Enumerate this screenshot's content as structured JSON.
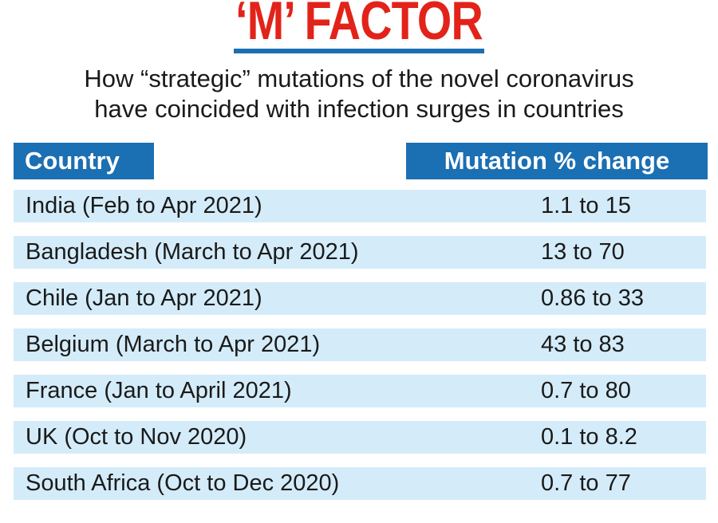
{
  "chart_data": {
    "type": "table",
    "title": "‘M’ FACTOR",
    "subtitle_lines": [
      "How “strategic” mutations of the novel coronavirus",
      "have coincided with infection surges in countries"
    ],
    "columns": [
      "Country",
      "Mutation % change"
    ],
    "rows": [
      {
        "country": "India (Feb to Apr 2021)",
        "change": "1.1 to 15",
        "from": 1.1,
        "to": 15
      },
      {
        "country": "Bangladesh (March to Apr 2021)",
        "change": "13 to 70",
        "from": 13,
        "to": 70
      },
      {
        "country": "Chile (Jan to Apr 2021)",
        "change": "0.86 to 33",
        "from": 0.86,
        "to": 33
      },
      {
        "country": "Belgium (March to Apr 2021)",
        "change": "43 to 83",
        "from": 43,
        "to": 83
      },
      {
        "country": "France (Jan to April 2021)",
        "change": "0.7 to 80",
        "from": 0.7,
        "to": 80
      },
      {
        "country": "UK (Oct to Nov 2020)",
        "change": "0.1 to 8.2",
        "from": 0.1,
        "to": 8.2
      },
      {
        "country": "South Africa (Oct to Dec 2020)",
        "change": "0.7 to 77",
        "from": 0.7,
        "to": 77
      }
    ],
    "colors": {
      "title": "#e2231a",
      "header_bg": "#1b6fb3",
      "row_bg": "#d4ecf9"
    }
  }
}
